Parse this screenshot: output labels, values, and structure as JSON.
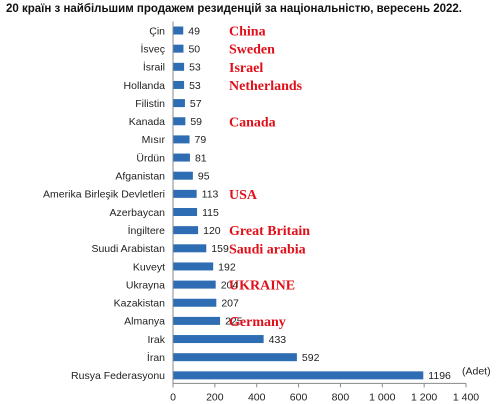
{
  "chart_data": {
    "type": "bar",
    "orientation": "horizontal",
    "title": "20 країн з найбільшим продажем резиденцій за національністю, вересень 2022.",
    "unit_label": "(Adet)",
    "categories": [
      "Çin",
      "İsveç",
      "İsrail",
      "Hollanda",
      "Filistin",
      "Kanada",
      "Mısır",
      "Ürdün",
      "Afganistan",
      "Amerika Birleşik Devletleri",
      "Azerbaycan",
      "İngiltere",
      "Suudi Arabistan",
      "Kuveyt",
      "Ukrayna",
      "Kazakistan",
      "Almanya",
      "Irak",
      "İran",
      "Rusya Federasyonu"
    ],
    "values": [
      49,
      50,
      53,
      53,
      57,
      59,
      79,
      81,
      95,
      113,
      115,
      120,
      159,
      192,
      204,
      207,
      225,
      433,
      592,
      1196
    ],
    "value_labels": [
      "49",
      "50",
      "53",
      "53",
      "57",
      "59",
      "79",
      "81",
      "95",
      "113",
      "115",
      "120",
      "159",
      "192",
      "204",
      "207",
      "225",
      "433",
      "592",
      "1196"
    ],
    "annotations": [
      "China",
      "Sweden",
      "Israel",
      "Netherlands",
      "",
      "Canada",
      "",
      "",
      "",
      "USA",
      "",
      "Great Britain",
      "Saudi arabia",
      "",
      "UKRAINE",
      "",
      "Germany",
      "",
      "",
      ""
    ],
    "xlim": [
      0,
      1400
    ],
    "x_ticks": [
      0,
      200,
      400,
      600,
      800,
      1000,
      1200,
      1400
    ],
    "x_tick_labels": [
      "0",
      "200",
      "400",
      "600",
      "800",
      "1 000",
      "1 200",
      "1 400"
    ],
    "bar_color": "#2e6db4",
    "annotation_color": "#e0101a",
    "grid": false
  }
}
